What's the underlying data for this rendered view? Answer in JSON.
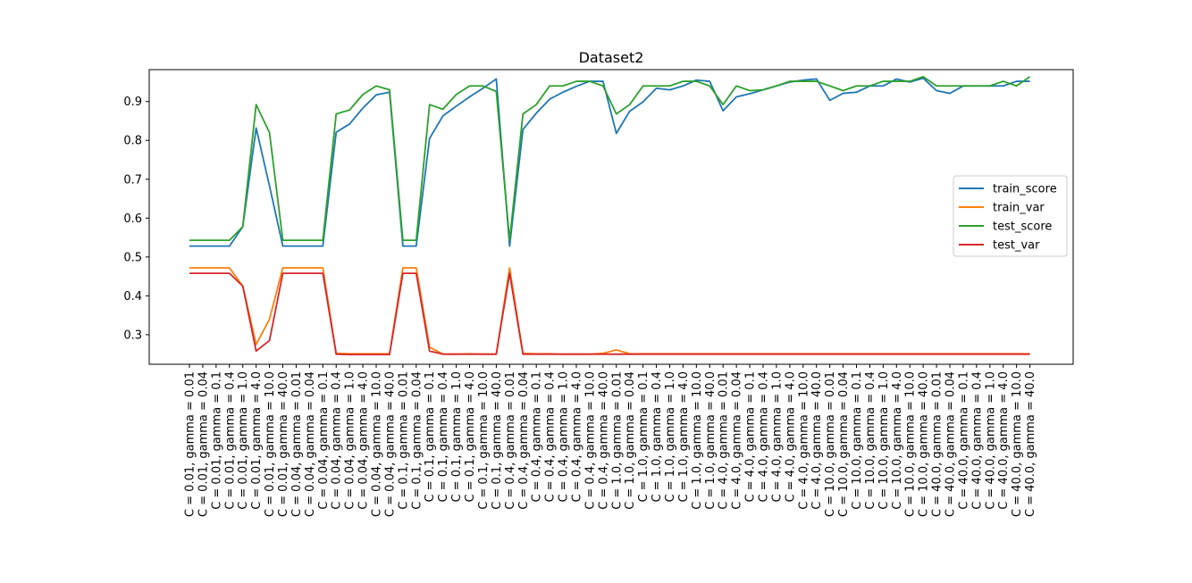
{
  "chart_data": {
    "type": "line",
    "title": "Dataset2",
    "xlabel": "",
    "ylabel": "",
    "ylim": [
      0.224,
      0.982
    ],
    "yticks": [
      "0.3",
      "0.4",
      "0.5",
      "0.6",
      "0.7",
      "0.8",
      "0.9"
    ],
    "ytick_values": [
      0.3,
      0.4,
      0.5,
      0.6,
      0.7,
      0.8,
      0.9
    ],
    "grid": false,
    "legend_position": "center-right",
    "categories": [
      "C = 0.01, gamma = 0.01",
      "C = 0.01, gamma = 0.04",
      "C = 0.01, gamma = 0.1",
      "C = 0.01, gamma = 0.4",
      "C = 0.01, gamma = 1.0",
      "C = 0.01, gamma = 4.0",
      "C = 0.01, gamma = 10.0",
      "C = 0.01, gamma = 40.0",
      "C = 0.04, gamma = 0.01",
      "C = 0.04, gamma = 0.04",
      "C = 0.04, gamma = 0.1",
      "C = 0.04, gamma = 0.4",
      "C = 0.04, gamma = 1.0",
      "C = 0.04, gamma = 4.0",
      "C = 0.04, gamma = 10.0",
      "C = 0.04, gamma = 40.0",
      "C = 0.1, gamma = 0.01",
      "C = 0.1, gamma = 0.04",
      "C = 0.1, gamma = 0.1",
      "C = 0.1, gamma = 0.4",
      "C = 0.1, gamma = 1.0",
      "C = 0.1, gamma = 4.0",
      "C = 0.1, gamma = 10.0",
      "C = 0.1, gamma = 40.0",
      "C = 0.4, gamma = 0.01",
      "C = 0.4, gamma = 0.04",
      "C = 0.4, gamma = 0.1",
      "C = 0.4, gamma = 0.4",
      "C = 0.4, gamma = 1.0",
      "C = 0.4, gamma = 4.0",
      "C = 0.4, gamma = 10.0",
      "C = 0.4, gamma = 40.0",
      "C = 1.0, gamma = 0.01",
      "C = 1.0, gamma = 0.04",
      "C = 1.0, gamma = 0.1",
      "C = 1.0, gamma = 0.4",
      "C = 1.0, gamma = 1.0",
      "C = 1.0, gamma = 4.0",
      "C = 1.0, gamma = 10.0",
      "C = 1.0, gamma = 40.0",
      "C = 4.0, gamma = 0.01",
      "C = 4.0, gamma = 0.04",
      "C = 4.0, gamma = 0.1",
      "C = 4.0, gamma = 0.4",
      "C = 4.0, gamma = 1.0",
      "C = 4.0, gamma = 4.0",
      "C = 4.0, gamma = 10.0",
      "C = 4.0, gamma = 40.0",
      "C = 10.0, gamma = 0.01",
      "C = 10.0, gamma = 0.04",
      "C = 10.0, gamma = 0.1",
      "C = 10.0, gamma = 0.4",
      "C = 10.0, gamma = 1.0",
      "C = 10.0, gamma = 4.0",
      "C = 10.0, gamma = 10.0",
      "C = 10.0, gamma = 40.0",
      "C = 40.0, gamma = 0.01",
      "C = 40.0, gamma = 0.04",
      "C = 40.0, gamma = 0.1",
      "C = 40.0, gamma = 0.4",
      "C = 40.0, gamma = 1.0",
      "C = 40.0, gamma = 4.0",
      "C = 40.0, gamma = 10.0",
      "C = 40.0, gamma = 40.0"
    ],
    "series": [
      {
        "name": "train_score",
        "color": "#1f77b4",
        "values": [
          0.528,
          0.528,
          0.528,
          0.528,
          0.578,
          0.832,
          0.683,
          0.528,
          0.528,
          0.528,
          0.528,
          0.821,
          0.842,
          0.883,
          0.917,
          0.924,
          0.528,
          0.528,
          0.805,
          0.863,
          0.888,
          0.912,
          0.934,
          0.958,
          0.528,
          0.828,
          0.87,
          0.906,
          0.924,
          0.939,
          0.952,
          0.952,
          0.818,
          0.875,
          0.899,
          0.934,
          0.93,
          0.94,
          0.955,
          0.952,
          0.876,
          0.912,
          0.92,
          0.93,
          0.94,
          0.95,
          0.955,
          0.958,
          0.903,
          0.921,
          0.924,
          0.94,
          0.94,
          0.958,
          0.95,
          0.96,
          0.928,
          0.921,
          0.94,
          0.94,
          0.94,
          0.94,
          0.952,
          0.952
        ]
      },
      {
        "name": "train_var",
        "color": "#ff7f0e",
        "values": [
          0.472,
          0.472,
          0.472,
          0.472,
          0.425,
          0.275,
          0.34,
          0.472,
          0.472,
          0.472,
          0.472,
          0.252,
          0.251,
          0.251,
          0.251,
          0.251,
          0.472,
          0.472,
          0.268,
          0.25,
          0.25,
          0.251,
          0.25,
          0.25,
          0.472,
          0.252,
          0.251,
          0.251,
          0.25,
          0.25,
          0.25,
          0.252,
          0.261,
          0.251,
          0.251,
          0.251,
          0.251,
          0.251,
          0.251,
          0.251,
          0.251,
          0.251,
          0.251,
          0.251,
          0.251,
          0.251,
          0.251,
          0.251,
          0.251,
          0.251,
          0.251,
          0.251,
          0.251,
          0.251,
          0.251,
          0.251,
          0.251,
          0.251,
          0.251,
          0.251,
          0.251,
          0.251,
          0.251,
          0.251
        ]
      },
      {
        "name": "test_score",
        "color": "#2ca02c",
        "values": [
          0.543,
          0.543,
          0.543,
          0.543,
          0.578,
          0.892,
          0.82,
          0.543,
          0.543,
          0.543,
          0.543,
          0.868,
          0.878,
          0.918,
          0.94,
          0.93,
          0.543,
          0.543,
          0.892,
          0.88,
          0.918,
          0.94,
          0.94,
          0.926,
          0.543,
          0.868,
          0.892,
          0.94,
          0.94,
          0.952,
          0.952,
          0.94,
          0.868,
          0.892,
          0.94,
          0.94,
          0.94,
          0.952,
          0.952,
          0.94,
          0.892,
          0.94,
          0.928,
          0.93,
          0.94,
          0.952,
          0.952,
          0.952,
          0.94,
          0.928,
          0.94,
          0.94,
          0.952,
          0.952,
          0.952,
          0.964,
          0.94,
          0.94,
          0.94,
          0.94,
          0.94,
          0.952,
          0.94,
          0.964
        ]
      },
      {
        "name": "test_var",
        "color": "#d62728",
        "values": [
          0.458,
          0.458,
          0.458,
          0.458,
          0.425,
          0.258,
          0.285,
          0.458,
          0.458,
          0.458,
          0.458,
          0.25,
          0.249,
          0.249,
          0.249,
          0.249,
          0.458,
          0.458,
          0.258,
          0.25,
          0.25,
          0.25,
          0.25,
          0.25,
          0.458,
          0.25,
          0.25,
          0.25,
          0.25,
          0.25,
          0.25,
          0.25,
          0.25,
          0.25,
          0.25,
          0.25,
          0.25,
          0.25,
          0.25,
          0.25,
          0.25,
          0.25,
          0.25,
          0.25,
          0.25,
          0.25,
          0.25,
          0.25,
          0.25,
          0.25,
          0.25,
          0.25,
          0.25,
          0.25,
          0.25,
          0.25,
          0.25,
          0.25,
          0.25,
          0.25,
          0.25,
          0.25,
          0.25,
          0.25
        ]
      }
    ]
  }
}
